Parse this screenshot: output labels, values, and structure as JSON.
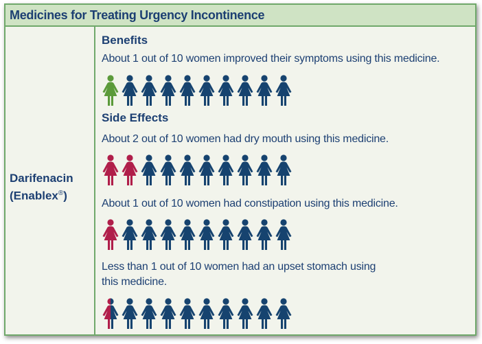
{
  "header": {
    "title": "Medicines for Treating Urgency Incontinence"
  },
  "drug": {
    "name": "Darifenacin",
    "brand": "(Enablex",
    "reg_mark": "®",
    "brand_close": ")"
  },
  "benefits": {
    "heading": "Benefits",
    "statement": "About 1 out of 10 women improved their symptoms using this medicine.",
    "highlighted": 1,
    "total": 10
  },
  "side_effects": {
    "heading": "Side Effects",
    "items": [
      {
        "statement": "About 2 out of 10 women had dry mouth using this medicine.",
        "highlighted": 2,
        "total": 10
      },
      {
        "statement": "About 1 out of 10 women had constipation using this medicine.",
        "highlighted": 1,
        "total": 10
      },
      {
        "statement_line1": "Less than 1 out of 10 women had an upset stomach using",
        "statement_line2": "this medicine.",
        "highlighted": 0.5,
        "total": 10
      }
    ]
  },
  "colors": {
    "text_navy": "#1c3f72",
    "person_default": "#16436f",
    "benefit_highlight": "#5b9a3a",
    "side_effect_highlight": "#b01e4a",
    "border_green": "#6fa86a",
    "header_bg": "#cfe3c4",
    "panel_bg": "#f2f4ec"
  }
}
